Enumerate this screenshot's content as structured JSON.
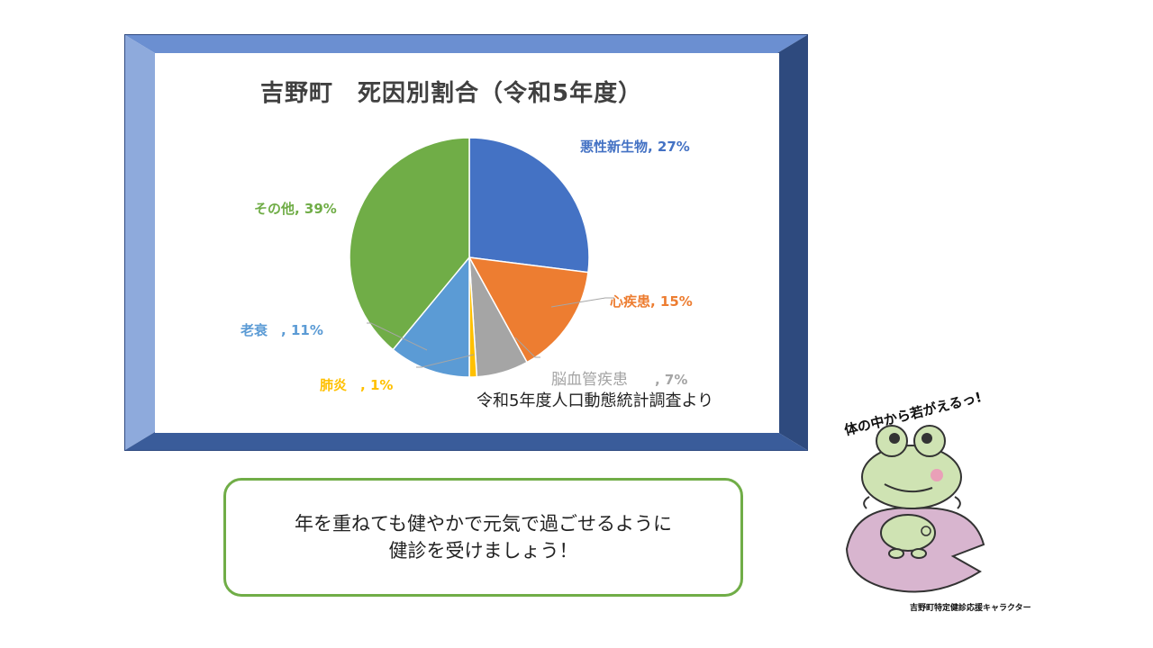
{
  "chart_data": {
    "type": "pie",
    "title": "吉野町　死因別割合（令和5年度）",
    "slices": [
      {
        "label": "悪性新生物",
        "value_text": ", 27%",
        "value": 27,
        "color": "#4472c4"
      },
      {
        "label": "心疾患",
        "value_text": ", 15%",
        "value": 15,
        "color": "#ed7d31"
      },
      {
        "label": "脳血管疾患",
        "value_text": ", 7%",
        "value": 7,
        "color": "#a5a5a5"
      },
      {
        "label": "肺炎",
        "value_text": ", 1%",
        "value": 1,
        "color": "#ffc000"
      },
      {
        "label": "老衰",
        "value_text": ", 11%",
        "value": 11,
        "color": "#5b9bd5"
      },
      {
        "label": "その他",
        "value_text": ", 39%",
        "value": 39,
        "color": "#70ad47"
      }
    ],
    "source": "令和5年度人口動態統計調査より"
  },
  "message": {
    "line1": "年を重ねても健やかで元気で過ごせるように",
    "line2": "健診を受けましょう！"
  },
  "mascot": {
    "slogan": "体の中から若がえるっ!",
    "caption": "吉野町特定健診応援キャラクター"
  }
}
